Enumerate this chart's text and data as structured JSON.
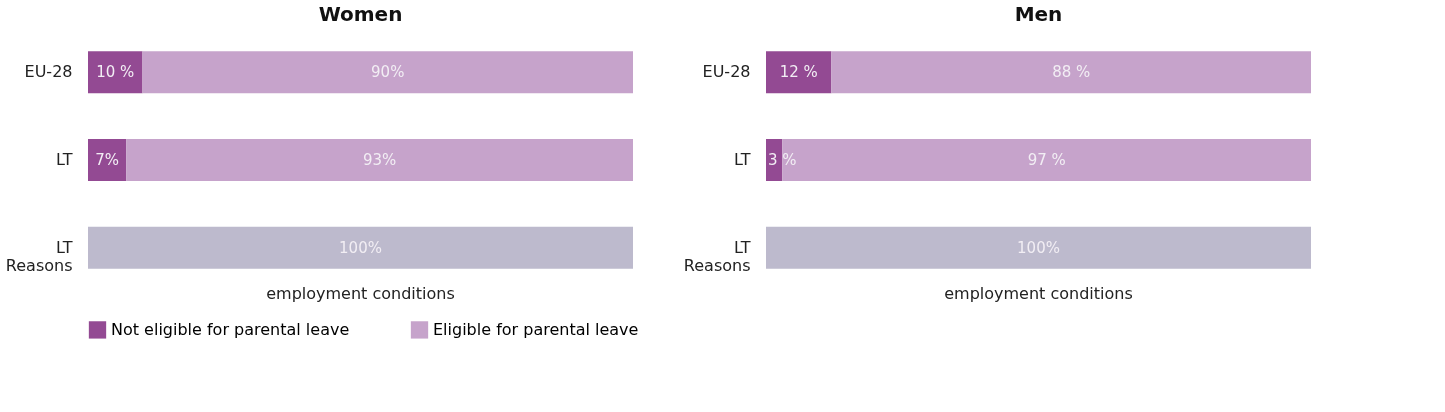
{
  "chart_data": [
    {
      "type": "bar",
      "orientation": "horizontal",
      "stacked": true,
      "title": "Women",
      "categories": [
        "EU-28",
        "LT",
        "LT Reasons"
      ],
      "legend": "bottom",
      "series": [
        {
          "name": "Not eligible for parental leave",
          "color": "#934a93",
          "values": [
            10,
            7,
            null
          ],
          "value_labels": [
            "10 %",
            "7%",
            null
          ]
        },
        {
          "name": "Eligible for parental leave",
          "color": "#c6a3cb",
          "values": [
            90,
            93,
            null
          ],
          "value_labels": [
            "90%",
            "93%",
            null
          ]
        },
        {
          "name": "employment conditions",
          "color": "#bdbacd",
          "values": [
            null,
            null,
            100
          ],
          "value_labels": [
            null,
            null,
            "100%"
          ]
        }
      ]
    },
    {
      "type": "bar",
      "orientation": "horizontal",
      "stacked": true,
      "title": "Men",
      "categories": [
        "EU-28",
        "LT",
        "LT Reasons"
      ],
      "legend": "bottom",
      "series": [
        {
          "name": "Not eligible for parental leave",
          "color": "#934a93",
          "values": [
            12,
            3,
            null
          ],
          "value_labels": [
            "12 %",
            "3 %",
            null
          ]
        },
        {
          "name": "Eligible for parental leave",
          "color": "#c6a3cb",
          "values": [
            88,
            97,
            null
          ],
          "value_labels": [
            "88 %",
            "97 %",
            null
          ]
        },
        {
          "name": "employment conditions",
          "color": "#bdbacd",
          "values": [
            null,
            null,
            100
          ],
          "value_labels": [
            null,
            null,
            "100%"
          ]
        }
      ]
    }
  ]
}
